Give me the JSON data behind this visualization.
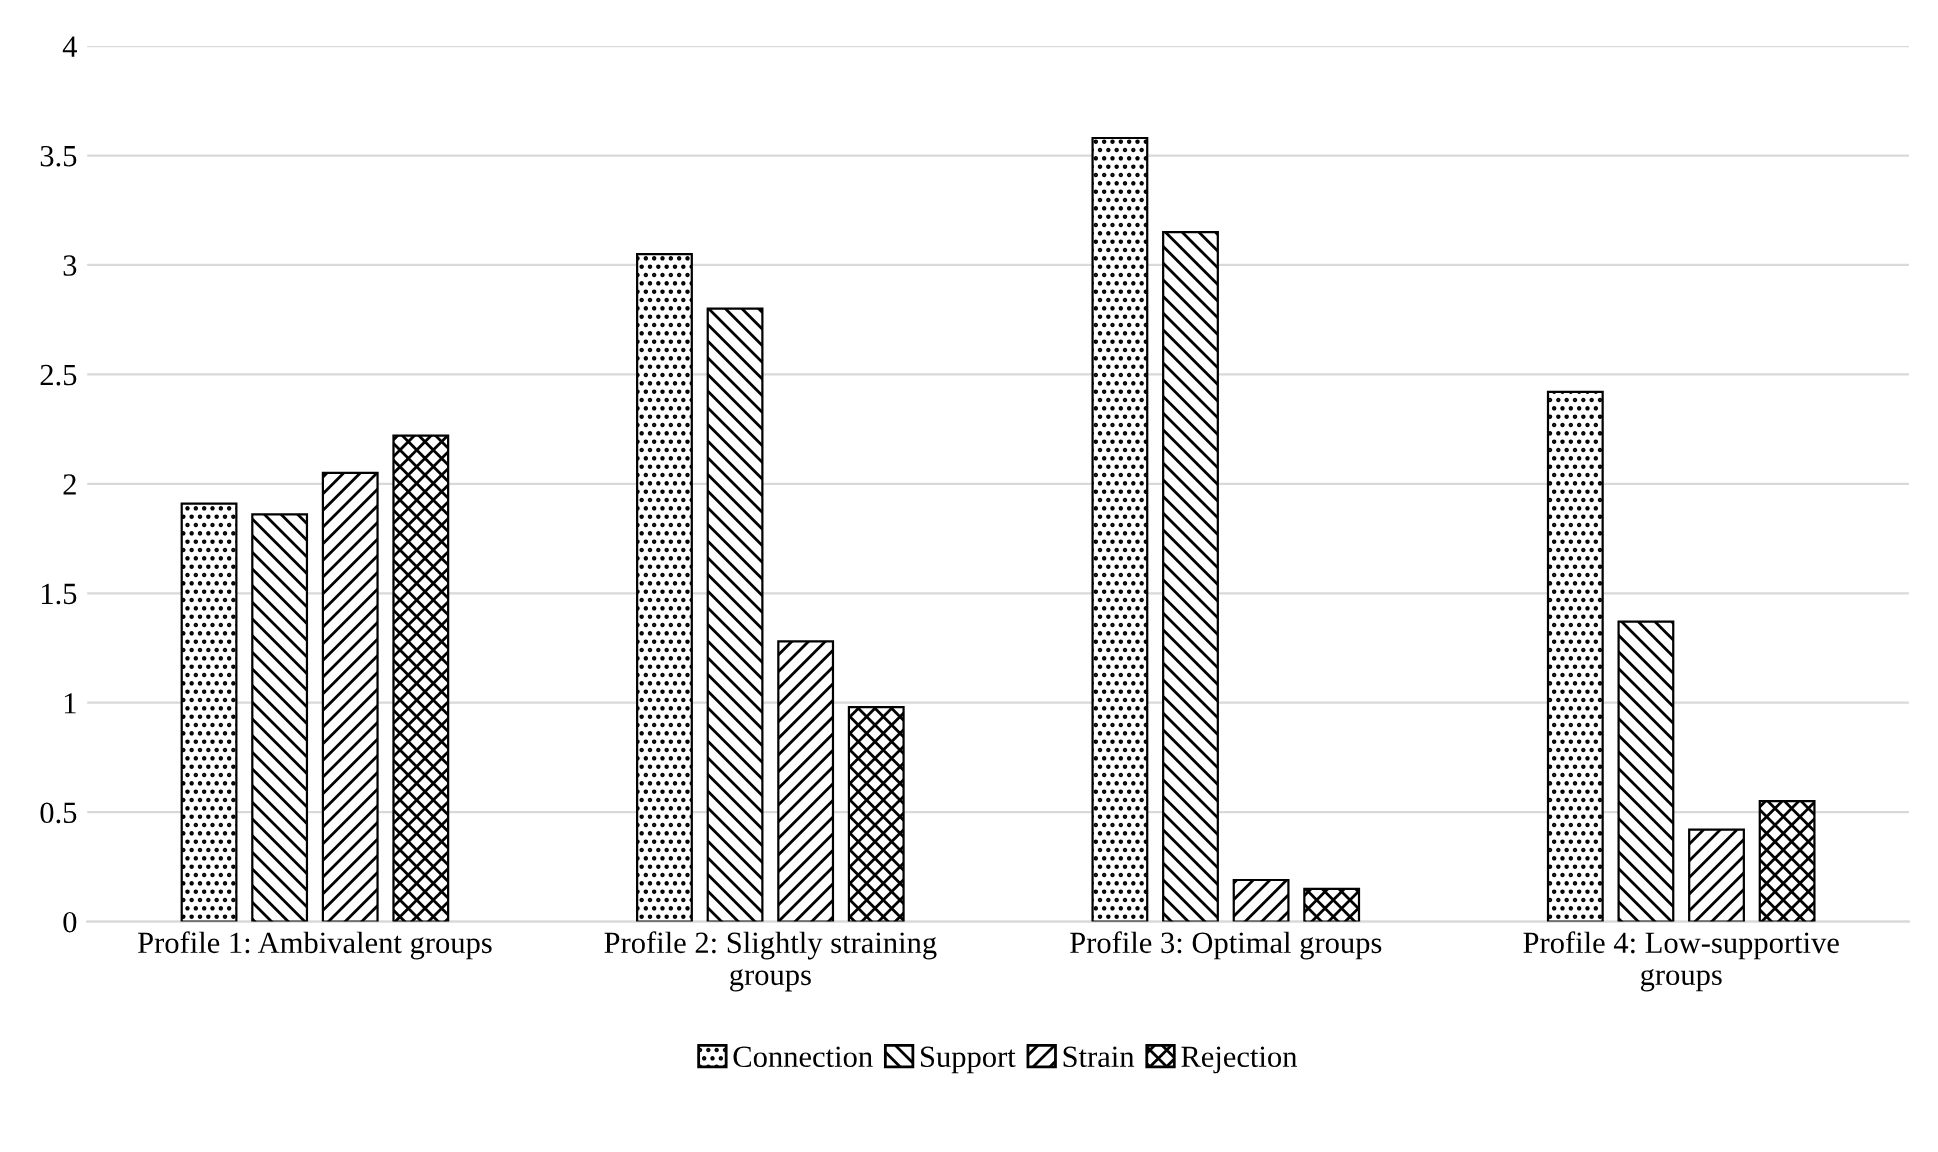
{
  "chart_data": {
    "type": "bar",
    "categories": [
      "Profile 1: Ambivalent groups",
      "Profile 2: Slightly straining groups",
      "Profile 3: Optimal groups",
      "Profile 4: Low-supportive groups"
    ],
    "series": [
      {
        "name": "Connection",
        "color": "#000000",
        "values": [
          1.91,
          3.05,
          3.58,
          2.42
        ]
      },
      {
        "name": "Support",
        "color": "#000000",
        "values": [
          1.86,
          2.8,
          3.15,
          1.37
        ]
      },
      {
        "name": "Strain",
        "color": "#000000",
        "values": [
          2.05,
          1.28,
          0.19,
          0.42
        ]
      },
      {
        "name": "Rejection",
        "color": "#000000",
        "values": [
          2.22,
          0.98,
          0.15,
          0.55
        ]
      }
    ],
    "ylim": [
      0,
      4
    ],
    "yticks": [
      0,
      0.5,
      1,
      1.5,
      2,
      2.5,
      3,
      3.5,
      4
    ],
    "grid": "y",
    "legend": "bottom"
  }
}
